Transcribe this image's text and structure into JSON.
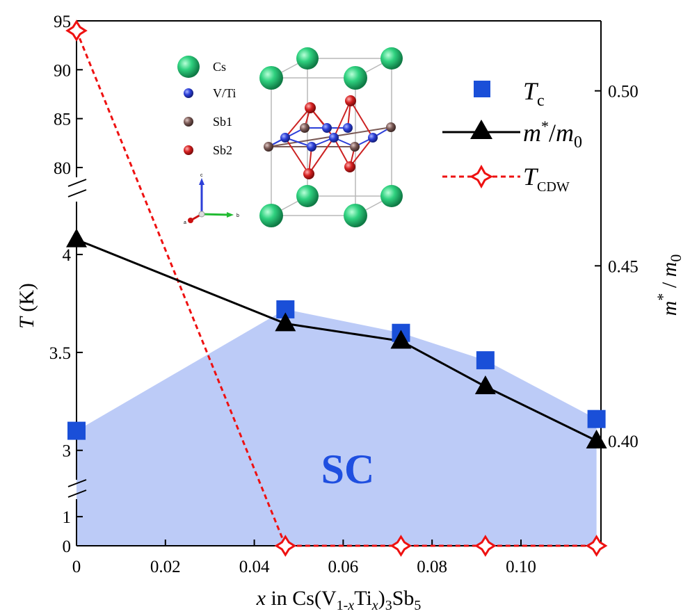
{
  "chart_data": {
    "type": "line",
    "x_axis": {
      "label_prefix": "x",
      "label_text": " in Cs(V",
      "label_sub1": "1-",
      "label_sub1_x": "x",
      "label_mid": "Ti",
      "label_sub2": "x",
      "label_close": ")",
      "label_sub3": "3",
      "label_end": "Sb",
      "label_sub4": "5",
      "range": [
        0,
        0.118
      ],
      "ticks": [
        "0",
        "0.02",
        "0.04",
        "0.06",
        "0.08",
        "0.10"
      ],
      "tick_values": [
        0,
        0.02,
        0.04,
        0.06,
        0.08,
        0.1
      ]
    },
    "y_axis_left": {
      "label_italic": "T",
      "label_rest": " (K)",
      "segments": [
        {
          "range": [
            0,
            1.6
          ],
          "ticks": [
            "0",
            "1"
          ],
          "tick_values": [
            0,
            1
          ]
        },
        {
          "range": [
            2.85,
            4.27
          ],
          "ticks": [
            "3",
            "3.5",
            "4"
          ],
          "tick_values": [
            3,
            3.5,
            4
          ]
        },
        {
          "range": [
            79,
            95
          ],
          "ticks": [
            "80",
            "85",
            "90",
            "95"
          ],
          "tick_values": [
            80,
            85,
            90,
            95
          ]
        }
      ]
    },
    "y_axis_right": {
      "label_m": "m",
      "label_star": "*",
      "label_slash": " / ",
      "label_m0": "m",
      "label_sub0": "0",
      "range": [
        0.37,
        0.52
      ],
      "ticks": [
        "0.40",
        "0.45",
        "0.50"
      ],
      "tick_values": [
        0.4,
        0.45,
        0.5
      ]
    },
    "series": [
      {
        "name_main": "T",
        "name_sub": "c",
        "marker": "square",
        "color": "#1a4fd8",
        "axis": "left",
        "x": [
          0,
          0.047,
          0.073,
          0.092,
          0.117
        ],
        "y": [
          3.1,
          3.72,
          3.6,
          3.46,
          3.16
        ]
      },
      {
        "name_main": "m",
        "name_star": "*",
        "name_slash": "/",
        "name_m0": "m",
        "name_sub": "0",
        "marker": "triangle",
        "color": "#000000",
        "axis": "right",
        "x": [
          0,
          0.047,
          0.073,
          0.092,
          0.117
        ],
        "y": [
          0.4575,
          0.4335,
          0.4285,
          0.4155,
          0.4
        ]
      },
      {
        "name_main": "T",
        "name_sub": "CDW",
        "marker": "diamond-open",
        "color": "#ee1111",
        "axis": "left",
        "x": [
          0,
          0.047,
          0.073,
          0.092,
          0.117
        ],
        "y": [
          94,
          0,
          0,
          0,
          0
        ]
      }
    ],
    "region": {
      "label": "SC",
      "color": "#bccbf7",
      "follows": "T_c"
    },
    "legend_position": "top-right",
    "grid": false
  },
  "inset": {
    "atoms": [
      {
        "label": "Cs",
        "color": "#2fd17f"
      },
      {
        "label": "V/Ti",
        "color": "#2c3fd8"
      },
      {
        "label": "Sb1",
        "color": "#7a5a56"
      },
      {
        "label": "Sb2",
        "color": "#d42020"
      }
    ],
    "axes_letters": [
      "a",
      "b",
      "c"
    ]
  }
}
